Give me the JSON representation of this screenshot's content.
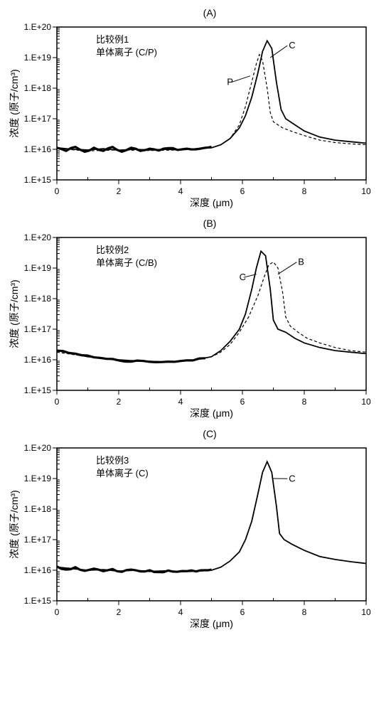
{
  "global": {
    "background_color": "#ffffff",
    "axis_color": "#000000",
    "series_color": "#000000",
    "font_family": "SimSun",
    "xlabel": "深度 (μm)",
    "ylabel": "浓度 (原子/cm³)",
    "xlim": [
      0,
      10
    ],
    "xtick_step": 2,
    "xticks": [
      0,
      2,
      4,
      6,
      8,
      10
    ],
    "ylim_exp": [
      15,
      20
    ],
    "yticks": [
      "1.E+15",
      "1.E+16",
      "1.E+17",
      "1.E+18",
      "1.E+19",
      "1.E+20"
    ],
    "title_fontsize": 14,
    "tick_fontsize": 12,
    "label_fontsize": 14
  },
  "panels": [
    {
      "label": "(A)",
      "legend_lines": [
        "比较例1",
        "单体离子 (C/P)"
      ],
      "callouts": [
        {
          "text": "C",
          "x": 7.5,
          "y_exp": 19.3,
          "to_x": 6.9,
          "to_y_exp": 19.0
        },
        {
          "text": "P",
          "x": 5.5,
          "y_exp": 18.1,
          "to_x": 6.25,
          "to_y_exp": 18.4
        }
      ],
      "series": [
        {
          "name": "C",
          "style": "solid",
          "width": 1.8,
          "data": [
            [
              0,
              16.05
            ],
            [
              0.5,
              16.0
            ],
            [
              1,
              15.98
            ],
            [
              1.5,
              16.02
            ],
            [
              2,
              15.97
            ],
            [
              2.5,
              16.0
            ],
            [
              3,
              15.98
            ],
            [
              3.5,
              16.0
            ],
            [
              4,
              15.98
            ],
            [
              4.5,
              16.02
            ],
            [
              5,
              16.05
            ],
            [
              5.3,
              16.15
            ],
            [
              5.6,
              16.35
            ],
            [
              5.9,
              16.7
            ],
            [
              6.1,
              17.1
            ],
            [
              6.3,
              17.7
            ],
            [
              6.5,
              18.5
            ],
            [
              6.65,
              19.2
            ],
            [
              6.8,
              19.55
            ],
            [
              6.95,
              19.3
            ],
            [
              7.1,
              18.2
            ],
            [
              7.25,
              17.3
            ],
            [
              7.4,
              17.0
            ],
            [
              7.7,
              16.8
            ],
            [
              8,
              16.6
            ],
            [
              8.5,
              16.4
            ],
            [
              9,
              16.3
            ],
            [
              9.5,
              16.25
            ],
            [
              10,
              16.2
            ]
          ]
        },
        {
          "name": "P",
          "style": "dash",
          "width": 1.2,
          "data": [
            [
              0,
              16.02
            ],
            [
              1,
              15.95
            ],
            [
              2,
              15.98
            ],
            [
              3,
              15.96
            ],
            [
              4,
              15.98
            ],
            [
              4.5,
              16.0
            ],
            [
              5,
              16.05
            ],
            [
              5.3,
              16.15
            ],
            [
              5.6,
              16.35
            ],
            [
              5.9,
              16.8
            ],
            [
              6.1,
              17.4
            ],
            [
              6.3,
              18.2
            ],
            [
              6.45,
              18.8
            ],
            [
              6.55,
              19.1
            ],
            [
              6.65,
              18.9
            ],
            [
              6.8,
              18.0
            ],
            [
              6.9,
              17.2
            ],
            [
              7.0,
              16.9
            ],
            [
              7.3,
              16.7
            ],
            [
              7.7,
              16.55
            ],
            [
              8,
              16.45
            ],
            [
              8.5,
              16.3
            ],
            [
              9,
              16.22
            ],
            [
              9.5,
              16.18
            ],
            [
              10,
              16.15
            ]
          ]
        },
        {
          "name": "C-noise",
          "style": "fat",
          "width": 3.2,
          "data": [
            [
              0,
              16.05
            ],
            [
              0.3,
              15.95
            ],
            [
              0.6,
              16.08
            ],
            [
              0.9,
              15.92
            ],
            [
              1.2,
              16.05
            ],
            [
              1.5,
              15.95
            ],
            [
              1.8,
              16.08
            ],
            [
              2.1,
              15.92
            ],
            [
              2.4,
              16.05
            ],
            [
              2.7,
              15.95
            ],
            [
              3.0,
              16.02
            ],
            [
              3.3,
              15.96
            ],
            [
              3.6,
              16.04
            ],
            [
              3.9,
              15.98
            ],
            [
              4.2,
              16.02
            ],
            [
              4.5,
              16.0
            ],
            [
              4.8,
              16.05
            ],
            [
              5.0,
              16.08
            ]
          ]
        }
      ]
    },
    {
      "label": "(B)",
      "legend_lines": [
        "比较例2",
        "单体离子 (C/B)"
      ],
      "callouts": [
        {
          "text": "B",
          "x": 7.8,
          "y_exp": 19.1,
          "to_x": 7.15,
          "to_y_exp": 18.8
        },
        {
          "text": "C",
          "x": 5.9,
          "y_exp": 18.6,
          "to_x": 6.45,
          "to_y_exp": 18.8
        }
      ],
      "series": [
        {
          "name": "C",
          "style": "solid",
          "width": 1.8,
          "data": [
            [
              0,
              16.3
            ],
            [
              0.5,
              16.2
            ],
            [
              1,
              16.1
            ],
            [
              1.5,
              16.05
            ],
            [
              2,
              16.0
            ],
            [
              2.5,
              15.96
            ],
            [
              3,
              15.95
            ],
            [
              3.5,
              15.93
            ],
            [
              4,
              15.95
            ],
            [
              4.5,
              16.0
            ],
            [
              5,
              16.1
            ],
            [
              5.3,
              16.3
            ],
            [
              5.6,
              16.6
            ],
            [
              5.9,
              17.0
            ],
            [
              6.1,
              17.5
            ],
            [
              6.3,
              18.3
            ],
            [
              6.45,
              19.0
            ],
            [
              6.6,
              19.55
            ],
            [
              6.75,
              19.4
            ],
            [
              6.9,
              18.3
            ],
            [
              7.0,
              17.3
            ],
            [
              7.15,
              17.0
            ],
            [
              7.4,
              16.9
            ],
            [
              7.7,
              16.7
            ],
            [
              8,
              16.55
            ],
            [
              8.5,
              16.4
            ],
            [
              9,
              16.3
            ],
            [
              9.5,
              16.25
            ],
            [
              10,
              16.2
            ]
          ]
        },
        {
          "name": "B",
          "style": "dash",
          "width": 1.2,
          "data": [
            [
              0,
              16.25
            ],
            [
              1,
              16.1
            ],
            [
              2,
              16.0
            ],
            [
              3,
              15.95
            ],
            [
              3.5,
              15.93
            ],
            [
              4,
              15.95
            ],
            [
              4.5,
              16.0
            ],
            [
              5,
              16.1
            ],
            [
              5.3,
              16.25
            ],
            [
              5.6,
              16.5
            ],
            [
              5.9,
              16.9
            ],
            [
              6.2,
              17.4
            ],
            [
              6.5,
              18.1
            ],
            [
              6.7,
              18.7
            ],
            [
              6.85,
              19.1
            ],
            [
              7.0,
              19.2
            ],
            [
              7.15,
              19.0
            ],
            [
              7.3,
              18.2
            ],
            [
              7.4,
              17.4
            ],
            [
              7.55,
              17.1
            ],
            [
              7.8,
              16.9
            ],
            [
              8.1,
              16.7
            ],
            [
              8.5,
              16.55
            ],
            [
              9,
              16.4
            ],
            [
              9.5,
              16.3
            ],
            [
              10,
              16.25
            ]
          ]
        },
        {
          "name": "base-noise",
          "style": "fat",
          "width": 3.0,
          "data": [
            [
              0,
              16.3
            ],
            [
              0.4,
              16.22
            ],
            [
              0.8,
              16.15
            ],
            [
              1.2,
              16.08
            ],
            [
              1.6,
              16.03
            ],
            [
              2.0,
              15.98
            ],
            [
              2.4,
              15.94
            ],
            [
              2.8,
              15.96
            ],
            [
              3.2,
              15.92
            ],
            [
              3.6,
              15.94
            ],
            [
              4.0,
              15.96
            ],
            [
              4.4,
              15.98
            ],
            [
              4.8,
              16.05
            ]
          ]
        }
      ]
    },
    {
      "label": "(C)",
      "legend_lines": [
        "比较例3",
        "单体离子 (C)"
      ],
      "callouts": [
        {
          "text": "C",
          "x": 7.5,
          "y_exp": 18.9,
          "to_x": 7.0,
          "to_y_exp": 19.0
        }
      ],
      "series": [
        {
          "name": "C",
          "style": "solid",
          "width": 1.8,
          "data": [
            [
              0,
              16.1
            ],
            [
              0.5,
              16.05
            ],
            [
              1,
              16.0
            ],
            [
              1.5,
              16.02
            ],
            [
              2,
              15.97
            ],
            [
              2.5,
              16.0
            ],
            [
              3,
              15.96
            ],
            [
              3.5,
              15.98
            ],
            [
              4,
              15.95
            ],
            [
              4.5,
              15.97
            ],
            [
              5,
              16.0
            ],
            [
              5.3,
              16.1
            ],
            [
              5.6,
              16.3
            ],
            [
              5.9,
              16.6
            ],
            [
              6.1,
              17.0
            ],
            [
              6.3,
              17.6
            ],
            [
              6.5,
              18.5
            ],
            [
              6.65,
              19.2
            ],
            [
              6.8,
              19.55
            ],
            [
              6.95,
              19.2
            ],
            [
              7.1,
              18.1
            ],
            [
              7.2,
              17.2
            ],
            [
              7.35,
              17.0
            ],
            [
              7.6,
              16.85
            ],
            [
              8,
              16.65
            ],
            [
              8.5,
              16.45
            ],
            [
              9,
              16.35
            ],
            [
              9.5,
              16.28
            ],
            [
              10,
              16.22
            ]
          ]
        },
        {
          "name": "base-noise",
          "style": "fat",
          "width": 3.0,
          "data": [
            [
              0,
              16.12
            ],
            [
              0.3,
              16.02
            ],
            [
              0.6,
              16.1
            ],
            [
              0.9,
              15.98
            ],
            [
              1.2,
              16.05
            ],
            [
              1.5,
              15.97
            ],
            [
              1.8,
              16.04
            ],
            [
              2.1,
              15.95
            ],
            [
              2.4,
              16.02
            ],
            [
              2.7,
              15.96
            ],
            [
              3.0,
              16.0
            ],
            [
              3.3,
              15.94
            ],
            [
              3.6,
              15.99
            ],
            [
              3.9,
              15.95
            ],
            [
              4.2,
              15.97
            ],
            [
              4.5,
              15.96
            ],
            [
              4.8,
              16.0
            ],
            [
              5.0,
              16.02
            ]
          ]
        }
      ]
    }
  ]
}
